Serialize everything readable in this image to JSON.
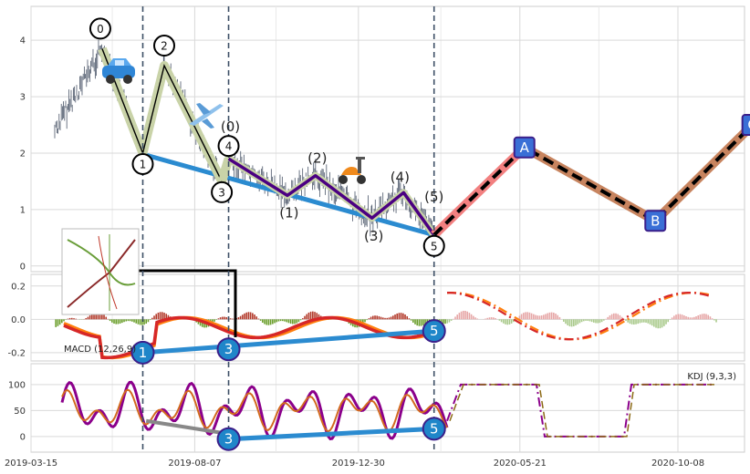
{
  "chart_data": {
    "type": "line",
    "x_ticks": [
      "2019-03-15",
      "2019-08-07",
      "2019-12-30",
      "2020-05-21",
      "2020-10-08"
    ],
    "panels": [
      {
        "id": "price",
        "ylim": [
          -0.1,
          4.6
        ],
        "y_ticks": [
          0,
          1,
          2,
          3,
          4
        ],
        "pivot_dates": [
          "2019-05-17",
          "2019-06-22",
          "2019-07-11",
          "2019-08-31",
          "2019-09-06",
          "2019-10-28",
          "2019-11-22",
          "2020-01-11",
          "2020-02-08",
          "2020-03-06"
        ],
        "pivot_values": [
          3.85,
          2.0,
          3.55,
          1.5,
          1.9,
          1.25,
          1.6,
          0.85,
          1.3,
          0.55
        ],
        "wave_labels": [
          "0",
          "1",
          "2",
          "3",
          "4",
          "(0)",
          "(1)",
          "(2)",
          "(3)",
          "(4)",
          "(5)",
          "5"
        ],
        "projection": {
          "labels": [
            "A",
            "B",
            "C"
          ],
          "dates": [
            "2020-03-06",
            "2020-05-25",
            "2020-09-18",
            "2020-12-13"
          ],
          "values": [
            0.55,
            2.1,
            0.8,
            2.5
          ]
        },
        "channel": {
          "dates": [
            "2019-06-22",
            "2020-03-06"
          ],
          "values": [
            1.98,
            0.55
          ]
        }
      },
      {
        "id": "macd",
        "label": "MACD (12,26,9)",
        "ylim": [
          -0.25,
          0.27
        ],
        "y_ticks": [
          "0.2",
          "0.0",
          "-0.2"
        ],
        "markers": [
          {
            "label": "1",
            "date": "2019-06-22",
            "value": -0.2
          },
          {
            "label": "3",
            "date": "2019-09-06",
            "value": -0.18
          },
          {
            "label": "5",
            "date": "2020-03-06",
            "value": -0.07
          }
        ],
        "line_colors": [
          "#ff7f0e",
          "#d62728"
        ]
      },
      {
        "id": "kdj",
        "label": "KDJ (9,3,3)",
        "ylim": [
          -30,
          140
        ],
        "y_ticks": [
          "100",
          "50",
          "0"
        ],
        "markers": [
          {
            "label": "3",
            "date": "2019-09-06",
            "value": -5
          },
          {
            "label": "5",
            "date": "2020-03-06",
            "value": 15
          }
        ],
        "line_colors": [
          "#8b008b",
          "#d2691e",
          "#8b6914"
        ]
      }
    ],
    "vlines": [
      "2019-06-22",
      "2019-09-06",
      "2020-03-06"
    ]
  },
  "colors": {
    "grid": "#d9d9d9",
    "price_bars": "#4a5568",
    "wave_primary": "#000000",
    "wave_shadow": "#c9d3a8",
    "wave_sub": "#4b0082",
    "projection": "#000000",
    "projection_shadow": "#f28080",
    "projection_shadow2": "#c7845f",
    "channel": "#2b8bd0",
    "marker_fill": "#1f86c9",
    "box_fill": "#3a6fd6",
    "box_border": "#3b1f8a"
  },
  "icons": [
    "car-icon",
    "airplane-icon",
    "scooter-icon",
    "inset-chart-icon"
  ]
}
